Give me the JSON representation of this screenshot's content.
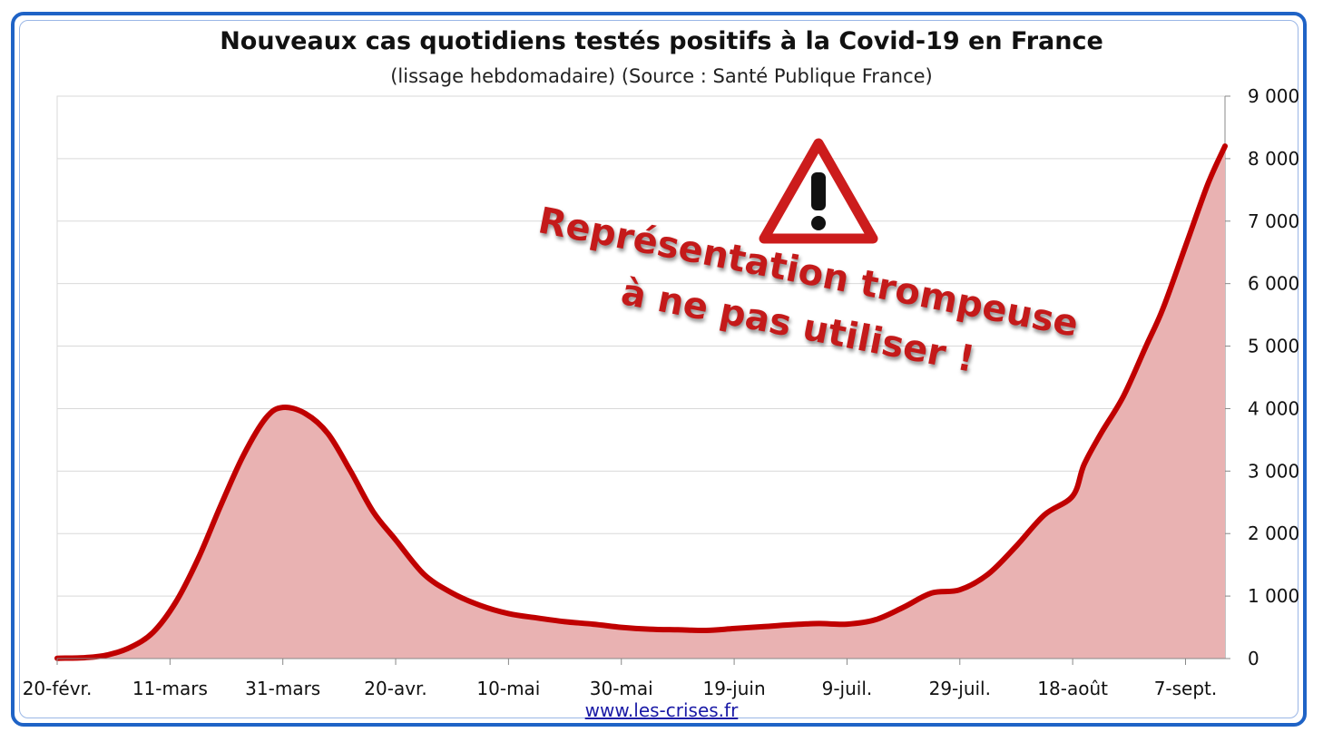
{
  "title": "Nouveaux cas quotidiens testés positifs à la Covid-19 en France",
  "subtitle": "(lissage hebdomadaire) (Source : Santé Publique France)",
  "source": "www.les-crises.fr",
  "warning": {
    "icon": "warning-triangle-icon",
    "line1": "Représentation trompeuse",
    "line2": "à ne pas utiliser !"
  },
  "colors": {
    "line": "#c00000",
    "fill": "#e9b2b2",
    "frame": "#1f63c6"
  },
  "chart_data": {
    "type": "area",
    "title": "Nouveaux cas quotidiens testés positifs à la Covid-19 en France",
    "subtitle": "(lissage hebdomadaire) (Source : Santé Publique France)",
    "xlabel": "",
    "ylabel": "",
    "x_tick_labels": [
      "20-févr.",
      "11-mars",
      "31-mars",
      "20-avr.",
      "10-mai",
      "30-mai",
      "19-juin",
      "9-juil.",
      "29-juil.",
      "18-août",
      "7-sept."
    ],
    "x_start": "2020-02-20",
    "y_tick_labels": [
      "0",
      "1 000",
      "2 000",
      "3 000",
      "4 000",
      "5 000",
      "6 000",
      "7 000",
      "8 000",
      "9 000"
    ],
    "ylim": [
      0,
      9000
    ],
    "y_axis_position": "right",
    "grid": true,
    "legend": "none",
    "series": [
      {
        "x": [
          "2020-02-20",
          "2020-02-25",
          "2020-02-29",
          "2020-03-04",
          "2020-03-08",
          "2020-03-12",
          "2020-03-16",
          "2020-03-20",
          "2020-03-24",
          "2020-03-28",
          "2020-03-31",
          "2020-04-04",
          "2020-04-08",
          "2020-04-12",
          "2020-04-16",
          "2020-04-20",
          "2020-04-25",
          "2020-04-30",
          "2020-05-05",
          "2020-05-10",
          "2020-05-15",
          "2020-05-20",
          "2020-05-25",
          "2020-05-30",
          "2020-06-04",
          "2020-06-09",
          "2020-06-14",
          "2020-06-19",
          "2020-06-24",
          "2020-06-29",
          "2020-07-04",
          "2020-07-09",
          "2020-07-14",
          "2020-07-19",
          "2020-07-24",
          "2020-07-29",
          "2020-08-03",
          "2020-08-08",
          "2020-08-13",
          "2020-08-18",
          "2020-08-20",
          "2020-08-23",
          "2020-08-27",
          "2020-08-31",
          "2020-09-03",
          "2020-09-07",
          "2020-09-11",
          "2020-09-14"
        ],
        "y": [
          5,
          15,
          60,
          180,
          420,
          900,
          1600,
          2450,
          3250,
          3850,
          4020,
          3920,
          3600,
          3000,
          2350,
          1900,
          1350,
          1050,
          850,
          720,
          650,
          590,
          550,
          500,
          470,
          460,
          450,
          480,
          510,
          540,
          560,
          550,
          620,
          820,
          1050,
          1100,
          1350,
          1800,
          2300,
          2600,
          3100,
          3600,
          4200,
          5000,
          5600,
          6600,
          7600,
          8200
        ]
      }
    ]
  }
}
